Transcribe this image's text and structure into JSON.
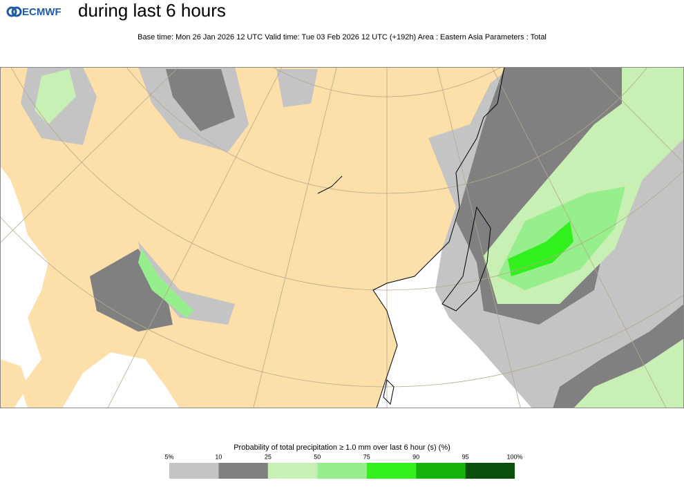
{
  "header": {
    "logo": "ECMWF",
    "title": "during last 6 hours",
    "subtitle": "Base time: Mon 26 Jan 2026 12 UTC Valid time: Tue 03 Feb 2026 12 UTC (+192h) Area : Eastern Asia Parameters : Total"
  },
  "legend": {
    "title": "Probability of total precipitation ≥ 1.0 mm over last 6 hour (s) (%)",
    "labels": [
      "5%",
      "10",
      "25",
      "50",
      "75",
      "90",
      "95",
      "100%"
    ],
    "colors": [
      "#c4c4c4",
      "#808080",
      "#c8f0b4",
      "#96ee8c",
      "#32f01e",
      "#14b40a",
      "#0a500a"
    ]
  }
}
